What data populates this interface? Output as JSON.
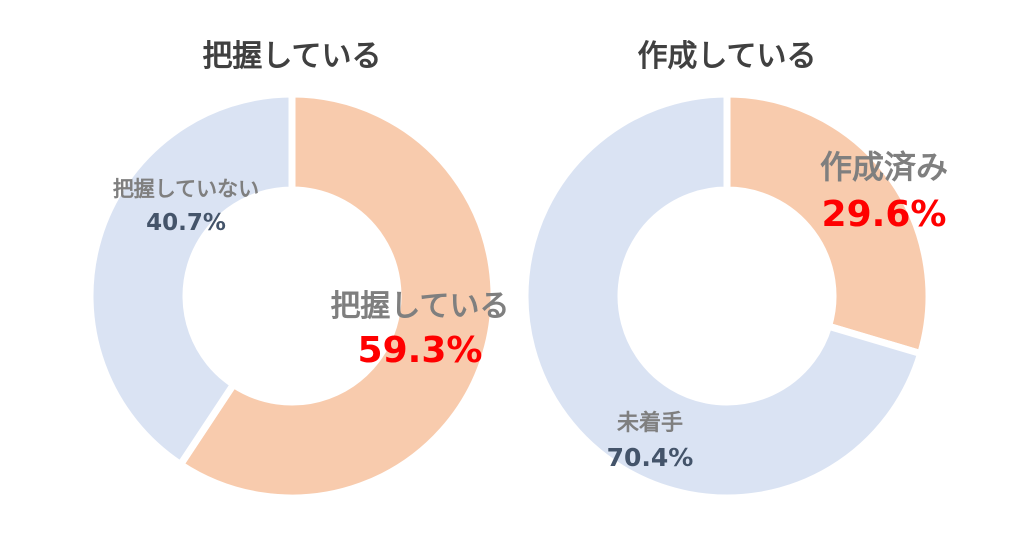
{
  "chart_data": [
    {
      "type": "pie",
      "title": "把握している",
      "slices": [
        {
          "name": "把握している",
          "value": 59.3,
          "value_label": "59.3%",
          "color": "#F8CBAD"
        },
        {
          "name": "把握していない",
          "value": 40.7,
          "value_label": "40.7%",
          "color": "#DAE3F3"
        }
      ]
    },
    {
      "type": "pie",
      "title": "作成している",
      "slices": [
        {
          "name": "作成済み",
          "value": 29.6,
          "value_label": "29.6%",
          "color": "#F8CBAD"
        },
        {
          "name": "未着手",
          "value": 70.4,
          "value_label": "70.4%",
          "color": "#DAE3F3"
        }
      ]
    }
  ]
}
